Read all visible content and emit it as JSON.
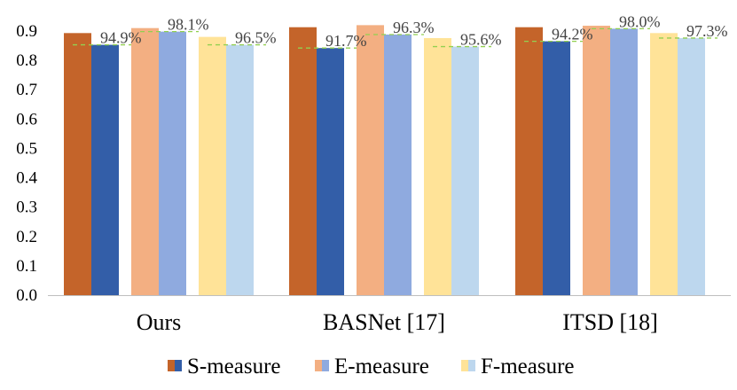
{
  "chart_data": {
    "type": "bar",
    "title": "",
    "xlabel": "",
    "ylabel": "",
    "ylim": [
      0,
      0.9
    ],
    "yticks": [
      "0.0",
      "0.1",
      "0.2",
      "0.3",
      "0.4",
      "0.5",
      "0.6",
      "0.7",
      "0.8",
      "0.9"
    ],
    "grid": false,
    "legend_position": "bottom",
    "categories": [
      "Ours",
      "BASNet [17]",
      "ITSD [18]"
    ],
    "metrics": [
      {
        "name": "S-measure",
        "colors": [
          "#C4642A",
          "#335EA8"
        ],
        "raw": [
          0.893,
          0.913,
          0.913
        ],
        "processed": [
          0.853,
          0.842,
          0.865
        ],
        "ratio_labels": [
          "94.9%",
          "91.7%",
          "94.2%"
        ]
      },
      {
        "name": "E-measure",
        "colors": [
          "#F3AF82",
          "#8FAADF"
        ],
        "raw": [
          0.91,
          0.92,
          0.918
        ],
        "processed": [
          0.898,
          0.888,
          0.908
        ],
        "ratio_labels": [
          "98.1%",
          "96.3%",
          "98.0%"
        ]
      },
      {
        "name": "F-measure",
        "colors": [
          "#FFE398",
          "#BDD7EE"
        ],
        "raw": [
          0.88,
          0.876,
          0.893
        ],
        "processed": [
          0.853,
          0.847,
          0.876
        ],
        "ratio_labels": [
          "96.5%",
          "95.6%",
          "97.3%"
        ]
      }
    ],
    "reference_line_color": "#92D050"
  }
}
